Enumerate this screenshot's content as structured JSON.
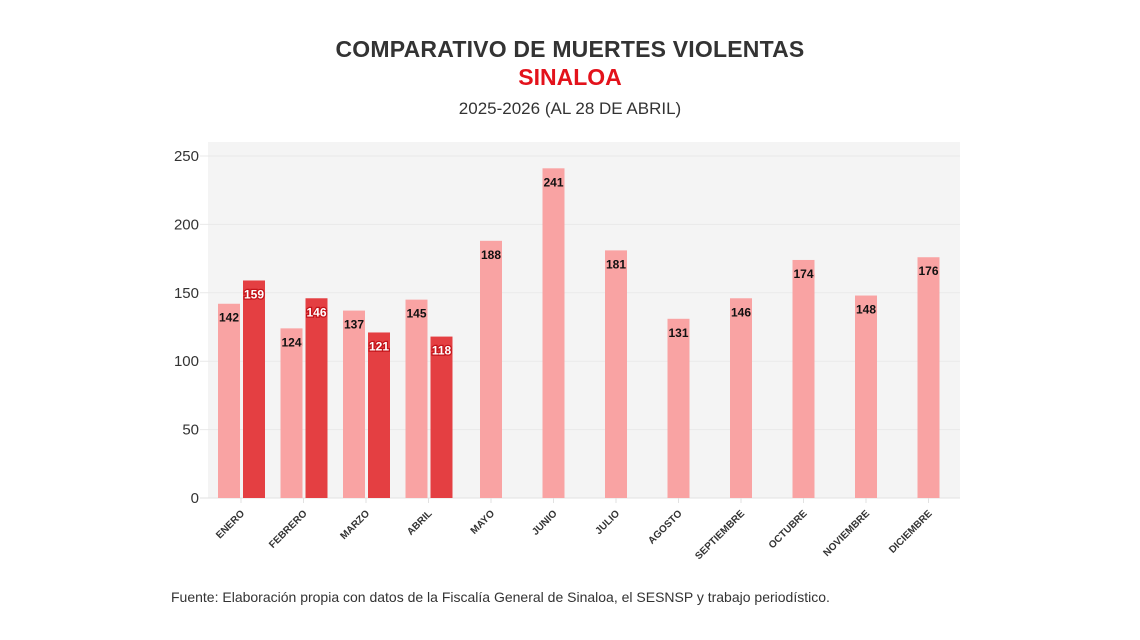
{
  "header": {
    "title": "COMPARATIVO DE MUERTES VIOLENTAS",
    "region": "SINALOA",
    "period": "2025-2026 (AL 28 DE ABRIL)"
  },
  "footer": {
    "source": "Fuente: Elaboración propia con datos de la Fiscalía General de Sinaloa, el SESNSP y trabajo periodístico."
  },
  "colors": {
    "series_2025": "#f9a3a3",
    "series_2026": "#e43f42",
    "plot_bg": "#f4f4f4",
    "title_red": "#e3121b"
  },
  "chart_data": {
    "type": "bar",
    "title": "COMPARATIVO DE MUERTES VIOLENTAS",
    "subtitle": "SINALOA — 2025-2026 (AL 28 DE ABRIL)",
    "xlabel": "",
    "ylabel": "",
    "ylim": [
      0,
      250
    ],
    "yticks": [
      0,
      50,
      100,
      150,
      200,
      250
    ],
    "grid": true,
    "legend": "none",
    "categories": [
      "ENERO",
      "FEBRERO",
      "MARZO",
      "ABRIL",
      "MAYO",
      "JUNIO",
      "JULIO",
      "AGOSTO",
      "SEPTIEMBRE",
      "OCTUBRE",
      "NOVIEMBRE",
      "DICIEMBRE"
    ],
    "series": [
      {
        "name": "2025",
        "values": [
          142,
          124,
          137,
          145,
          188,
          241,
          181,
          131,
          146,
          174,
          148,
          176
        ]
      },
      {
        "name": "2026",
        "values": [
          159,
          146,
          121,
          118,
          null,
          null,
          null,
          null,
          null,
          null,
          null,
          null
        ]
      }
    ]
  }
}
